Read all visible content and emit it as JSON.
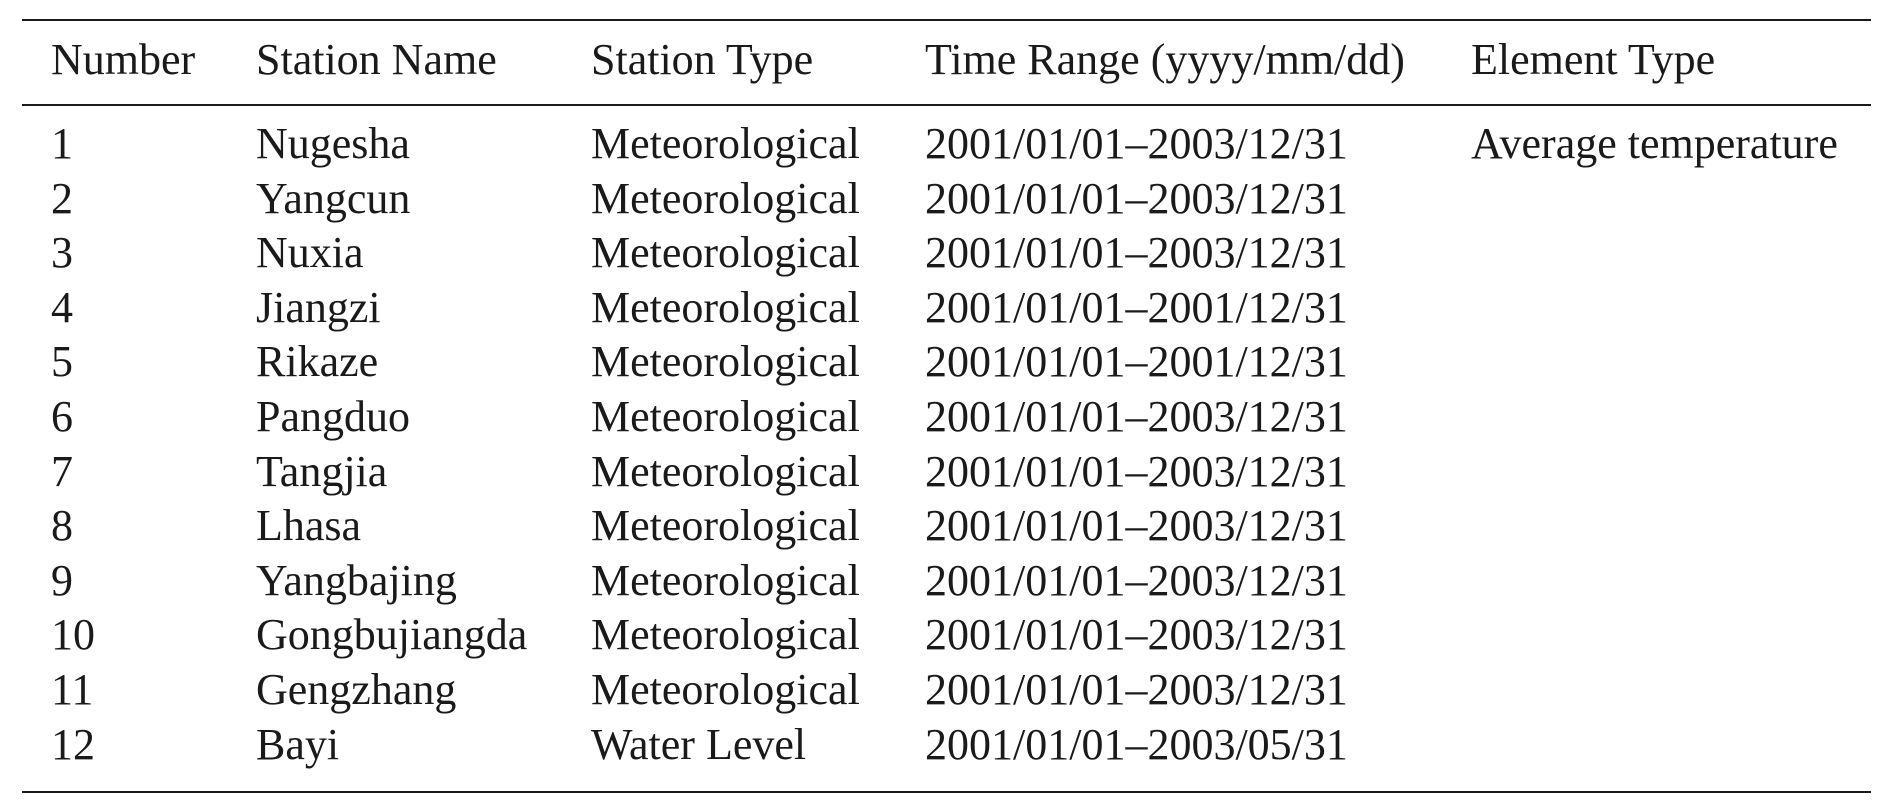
{
  "table": {
    "header": [
      "Number",
      "Station Name",
      "Station Type",
      "Time Range (yyyy/mm/dd)",
      "Element Type"
    ],
    "rows": [
      [
        "1",
        "Nugesha",
        "Meteorological",
        "2001/01/01–2003/12/31",
        "Average temperature"
      ],
      [
        "2",
        "Yangcun",
        "Meteorological",
        "2001/01/01–2003/12/31"
      ],
      [
        "3",
        "Nuxia",
        "Meteorological",
        "2001/01/01–2003/12/31"
      ],
      [
        "4",
        "Jiangzi",
        "Meteorological",
        "2001/01/01–2001/12/31"
      ],
      [
        "5",
        "Rikaze",
        "Meteorological",
        "2001/01/01–2001/12/31"
      ],
      [
        "6",
        "Pangduo",
        "Meteorological",
        "2001/01/01–2003/12/31"
      ],
      [
        "7",
        "Tangjia",
        "Meteorological",
        "2001/01/01–2003/12/31"
      ],
      [
        "8",
        "Lhasa",
        "Meteorological",
        "2001/01/01–2003/12/31"
      ],
      [
        "9",
        "Yangbajing",
        "Meteorological",
        "2001/01/01–2003/12/31"
      ],
      [
        "10",
        "Gongbujiangda",
        "Meteorological",
        "2001/01/01–2003/12/31"
      ],
      [
        "11",
        "Gengzhang",
        "Meteorological",
        "2001/01/01–2003/12/31"
      ],
      [
        "12",
        "Bayi",
        "Water Level",
        "2001/01/01–2003/05/31"
      ]
    ]
  }
}
